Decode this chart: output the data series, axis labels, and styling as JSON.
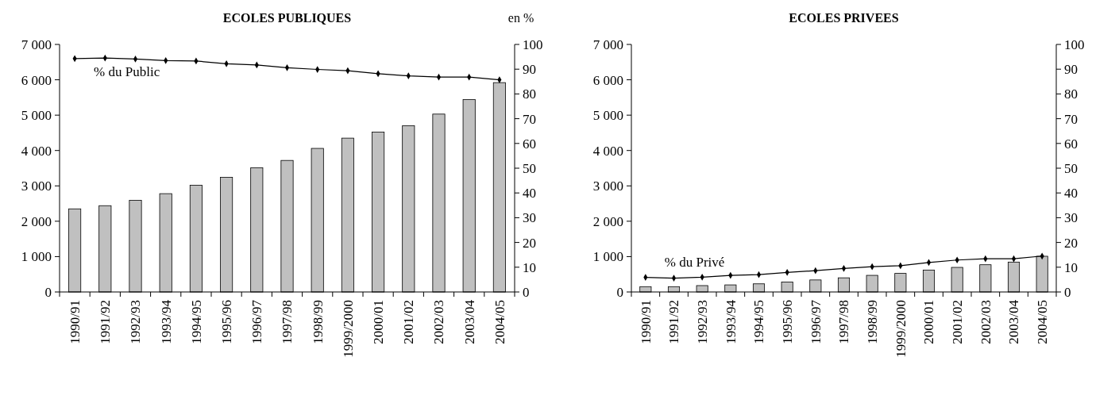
{
  "chart_data": [
    {
      "type": "bar",
      "title": "ECOLES PUBLIQUES",
      "y2label": "en %",
      "categories": [
        "1990/91",
        "1991/92",
        "1992/93",
        "1993/94",
        "1994/95",
        "1995/96",
        "1996/97",
        "1997/98",
        "1998/99",
        "1999/2000",
        "2000/01",
        "2001/02",
        "2002/03",
        "2003/04",
        "2004/05"
      ],
      "series": [
        {
          "color": "#c0c0c0",
          "values": [
            2350,
            2440,
            2590,
            2780,
            3020,
            3240,
            3510,
            3720,
            4060,
            4350,
            4520,
            4700,
            5030,
            5440,
            5920
          ]
        },
        {
          "type": "line",
          "name": "% du Public",
          "axis": "y2",
          "color": "#000000",
          "marker": "diamond",
          "values": [
            94.3,
            94.5,
            94.1,
            93.5,
            93.3,
            92.2,
            91.7,
            90.6,
            89.9,
            89.4,
            88.2,
            87.3,
            86.8,
            86.8,
            85.7
          ]
        }
      ],
      "ylim": [
        0,
        7000
      ],
      "yticks": [
        {
          "value": 0,
          "label": "0"
        },
        {
          "value": 1000,
          "label": "1 000"
        },
        {
          "value": 2000,
          "label": "2 000"
        },
        {
          "value": 3000,
          "label": "3 000"
        },
        {
          "value": 4000,
          "label": "4 000"
        },
        {
          "value": 5000,
          "label": "5 000"
        },
        {
          "value": 6000,
          "label": "6 000"
        },
        {
          "value": 7000,
          "label": "7 000"
        }
      ],
      "y2lim": [
        0,
        100
      ],
      "y2ticks": [
        0,
        10,
        20,
        30,
        40,
        50,
        60,
        70,
        80,
        90,
        100
      ],
      "grid": false
    },
    {
      "type": "bar",
      "title": "ECOLES PRIVEES",
      "categories": [
        "1990/91",
        "1991/92",
        "1992/93",
        "1993/94",
        "1994/95",
        "1995/96",
        "1996/97",
        "1997/98",
        "1998/99",
        "1999/2000",
        "2000/01",
        "2001/02",
        "2002/03",
        "2003/04",
        "2004/05"
      ],
      "series": [
        {
          "color": "#c0c0c0",
          "values": [
            150,
            150,
            180,
            200,
            230,
            280,
            340,
            400,
            470,
            525,
            620,
            695,
            770,
            845,
            1010
          ]
        },
        {
          "type": "line",
          "name": "% du Privé",
          "axis": "y2",
          "color": "#000000",
          "marker": "diamond",
          "values": [
            5.9,
            5.6,
            6.0,
            6.7,
            7.0,
            7.9,
            8.6,
            9.5,
            10.2,
            10.6,
            11.9,
            12.9,
            13.4,
            13.4,
            14.5
          ]
        }
      ],
      "ylim": [
        0,
        7000
      ],
      "yticks": [
        {
          "value": 0,
          "label": "0"
        },
        {
          "value": 1000,
          "label": "1 000"
        },
        {
          "value": 2000,
          "label": "2 000"
        },
        {
          "value": 3000,
          "label": "3 000"
        },
        {
          "value": 4000,
          "label": "4 000"
        },
        {
          "value": 5000,
          "label": "5 000"
        },
        {
          "value": 6000,
          "label": "6 000"
        },
        {
          "value": 7000,
          "label": "7 000"
        }
      ],
      "y2lim": [
        0,
        100
      ],
      "y2ticks": [
        0,
        10,
        20,
        30,
        40,
        50,
        60,
        70,
        80,
        90,
        100
      ],
      "grid": false
    }
  ]
}
